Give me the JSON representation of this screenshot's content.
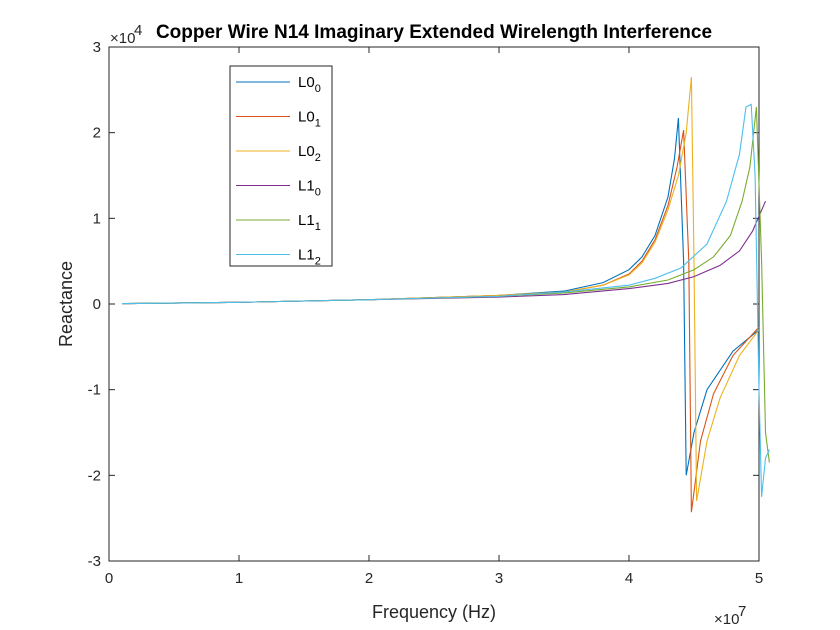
{
  "chart_data": {
    "type": "line",
    "title": "Copper Wire N14 Imaginary Extended Wirelength Interference",
    "xlabel": "Frequency (Hz)",
    "ylabel": "Reactance",
    "x_exponent_base": "×10",
    "x_exponent_power": "7",
    "y_exponent_base": "×10",
    "y_exponent_power": "4",
    "xlim": [
      0,
      5
    ],
    "ylim": [
      -3,
      3
    ],
    "xticks": [
      0,
      1,
      2,
      3,
      4,
      5
    ],
    "yticks": [
      -3,
      -2,
      -1,
      0,
      1,
      2,
      3
    ],
    "xtick_labels": [
      "0",
      "1",
      "2",
      "3",
      "4",
      "5"
    ],
    "ytick_labels": [
      "-3",
      "-2",
      "-1",
      "0",
      "1",
      "2",
      "3"
    ],
    "grid": false,
    "legend_position": "top-left",
    "series": [
      {
        "name": "L0",
        "subscript": "0",
        "color": "#0072BD",
        "points": [
          [
            0.1,
            0.005
          ],
          [
            1,
            0.02
          ],
          [
            2,
            0.05
          ],
          [
            3,
            0.1
          ],
          [
            3.5,
            0.15
          ],
          [
            3.8,
            0.25
          ],
          [
            4,
            0.4
          ],
          [
            4.1,
            0.55
          ],
          [
            4.2,
            0.8
          ],
          [
            4.3,
            1.25
          ],
          [
            4.35,
            1.7
          ],
          [
            4.38,
            2.17
          ],
          [
            4.42,
            0.5
          ],
          [
            4.44,
            -2.0
          ],
          [
            4.5,
            -1.5
          ],
          [
            4.6,
            -1.0
          ],
          [
            4.8,
            -0.55
          ],
          [
            5.0,
            -0.3
          ]
        ]
      },
      {
        "name": "L0",
        "subscript": "1",
        "color": "#D95319",
        "points": [
          [
            0.1,
            0.005
          ],
          [
            1,
            0.02
          ],
          [
            2,
            0.05
          ],
          [
            3,
            0.1
          ],
          [
            3.5,
            0.14
          ],
          [
            3.8,
            0.22
          ],
          [
            4,
            0.35
          ],
          [
            4.1,
            0.5
          ],
          [
            4.2,
            0.75
          ],
          [
            4.3,
            1.15
          ],
          [
            4.37,
            1.6
          ],
          [
            4.42,
            2.03
          ],
          [
            4.46,
            0.5
          ],
          [
            4.48,
            -2.43
          ],
          [
            4.55,
            -1.6
          ],
          [
            4.65,
            -1.05
          ],
          [
            4.8,
            -0.6
          ],
          [
            5.0,
            -0.27
          ]
        ]
      },
      {
        "name": "L0",
        "subscript": "2",
        "color": "#EDB120",
        "points": [
          [
            0.1,
            0.005
          ],
          [
            1,
            0.02
          ],
          [
            2,
            0.05
          ],
          [
            3,
            0.1
          ],
          [
            3.5,
            0.14
          ],
          [
            3.8,
            0.22
          ],
          [
            4,
            0.34
          ],
          [
            4.1,
            0.48
          ],
          [
            4.2,
            0.72
          ],
          [
            4.3,
            1.1
          ],
          [
            4.38,
            1.5
          ],
          [
            4.44,
            2.0
          ],
          [
            4.48,
            2.65
          ],
          [
            4.5,
            0.5
          ],
          [
            4.52,
            -2.3
          ],
          [
            4.6,
            -1.6
          ],
          [
            4.7,
            -1.1
          ],
          [
            4.85,
            -0.6
          ],
          [
            5.0,
            -0.3
          ]
        ]
      },
      {
        "name": "L1",
        "subscript": "0",
        "color": "#7E2F8E",
        "points": [
          [
            0.1,
            0.005
          ],
          [
            1,
            0.02
          ],
          [
            2,
            0.05
          ],
          [
            3,
            0.08
          ],
          [
            3.5,
            0.11
          ],
          [
            4,
            0.18
          ],
          [
            4.3,
            0.24
          ],
          [
            4.5,
            0.32
          ],
          [
            4.7,
            0.45
          ],
          [
            4.85,
            0.62
          ],
          [
            4.95,
            0.85
          ],
          [
            5.05,
            1.2
          ]
        ]
      },
      {
        "name": "L1",
        "subscript": "1",
        "color": "#77AC30",
        "points": [
          [
            0.1,
            0.005
          ],
          [
            1,
            0.02
          ],
          [
            2,
            0.05
          ],
          [
            3,
            0.09
          ],
          [
            3.5,
            0.13
          ],
          [
            4,
            0.2
          ],
          [
            4.3,
            0.28
          ],
          [
            4.5,
            0.4
          ],
          [
            4.65,
            0.55
          ],
          [
            4.78,
            0.8
          ],
          [
            4.87,
            1.2
          ],
          [
            4.93,
            1.6
          ],
          [
            4.98,
            2.3
          ],
          [
            5.02,
            0.5
          ],
          [
            5.05,
            -1.5
          ],
          [
            5.08,
            -1.85
          ]
        ]
      },
      {
        "name": "L1",
        "subscript": "2",
        "color": "#4DBEEE",
        "points": [
          [
            0.1,
            0.005
          ],
          [
            1,
            0.02
          ],
          [
            2,
            0.05
          ],
          [
            3,
            0.09
          ],
          [
            3.5,
            0.14
          ],
          [
            4,
            0.22
          ],
          [
            4.2,
            0.3
          ],
          [
            4.4,
            0.42
          ],
          [
            4.6,
            0.7
          ],
          [
            4.75,
            1.2
          ],
          [
            4.85,
            1.75
          ],
          [
            4.9,
            2.3
          ],
          [
            4.94,
            2.33
          ],
          [
            4.97,
            1.5
          ],
          [
            5.0,
            -1.0
          ],
          [
            5.02,
            -2.25
          ],
          [
            5.05,
            -1.8
          ],
          [
            5.08,
            -1.7
          ]
        ]
      }
    ]
  }
}
